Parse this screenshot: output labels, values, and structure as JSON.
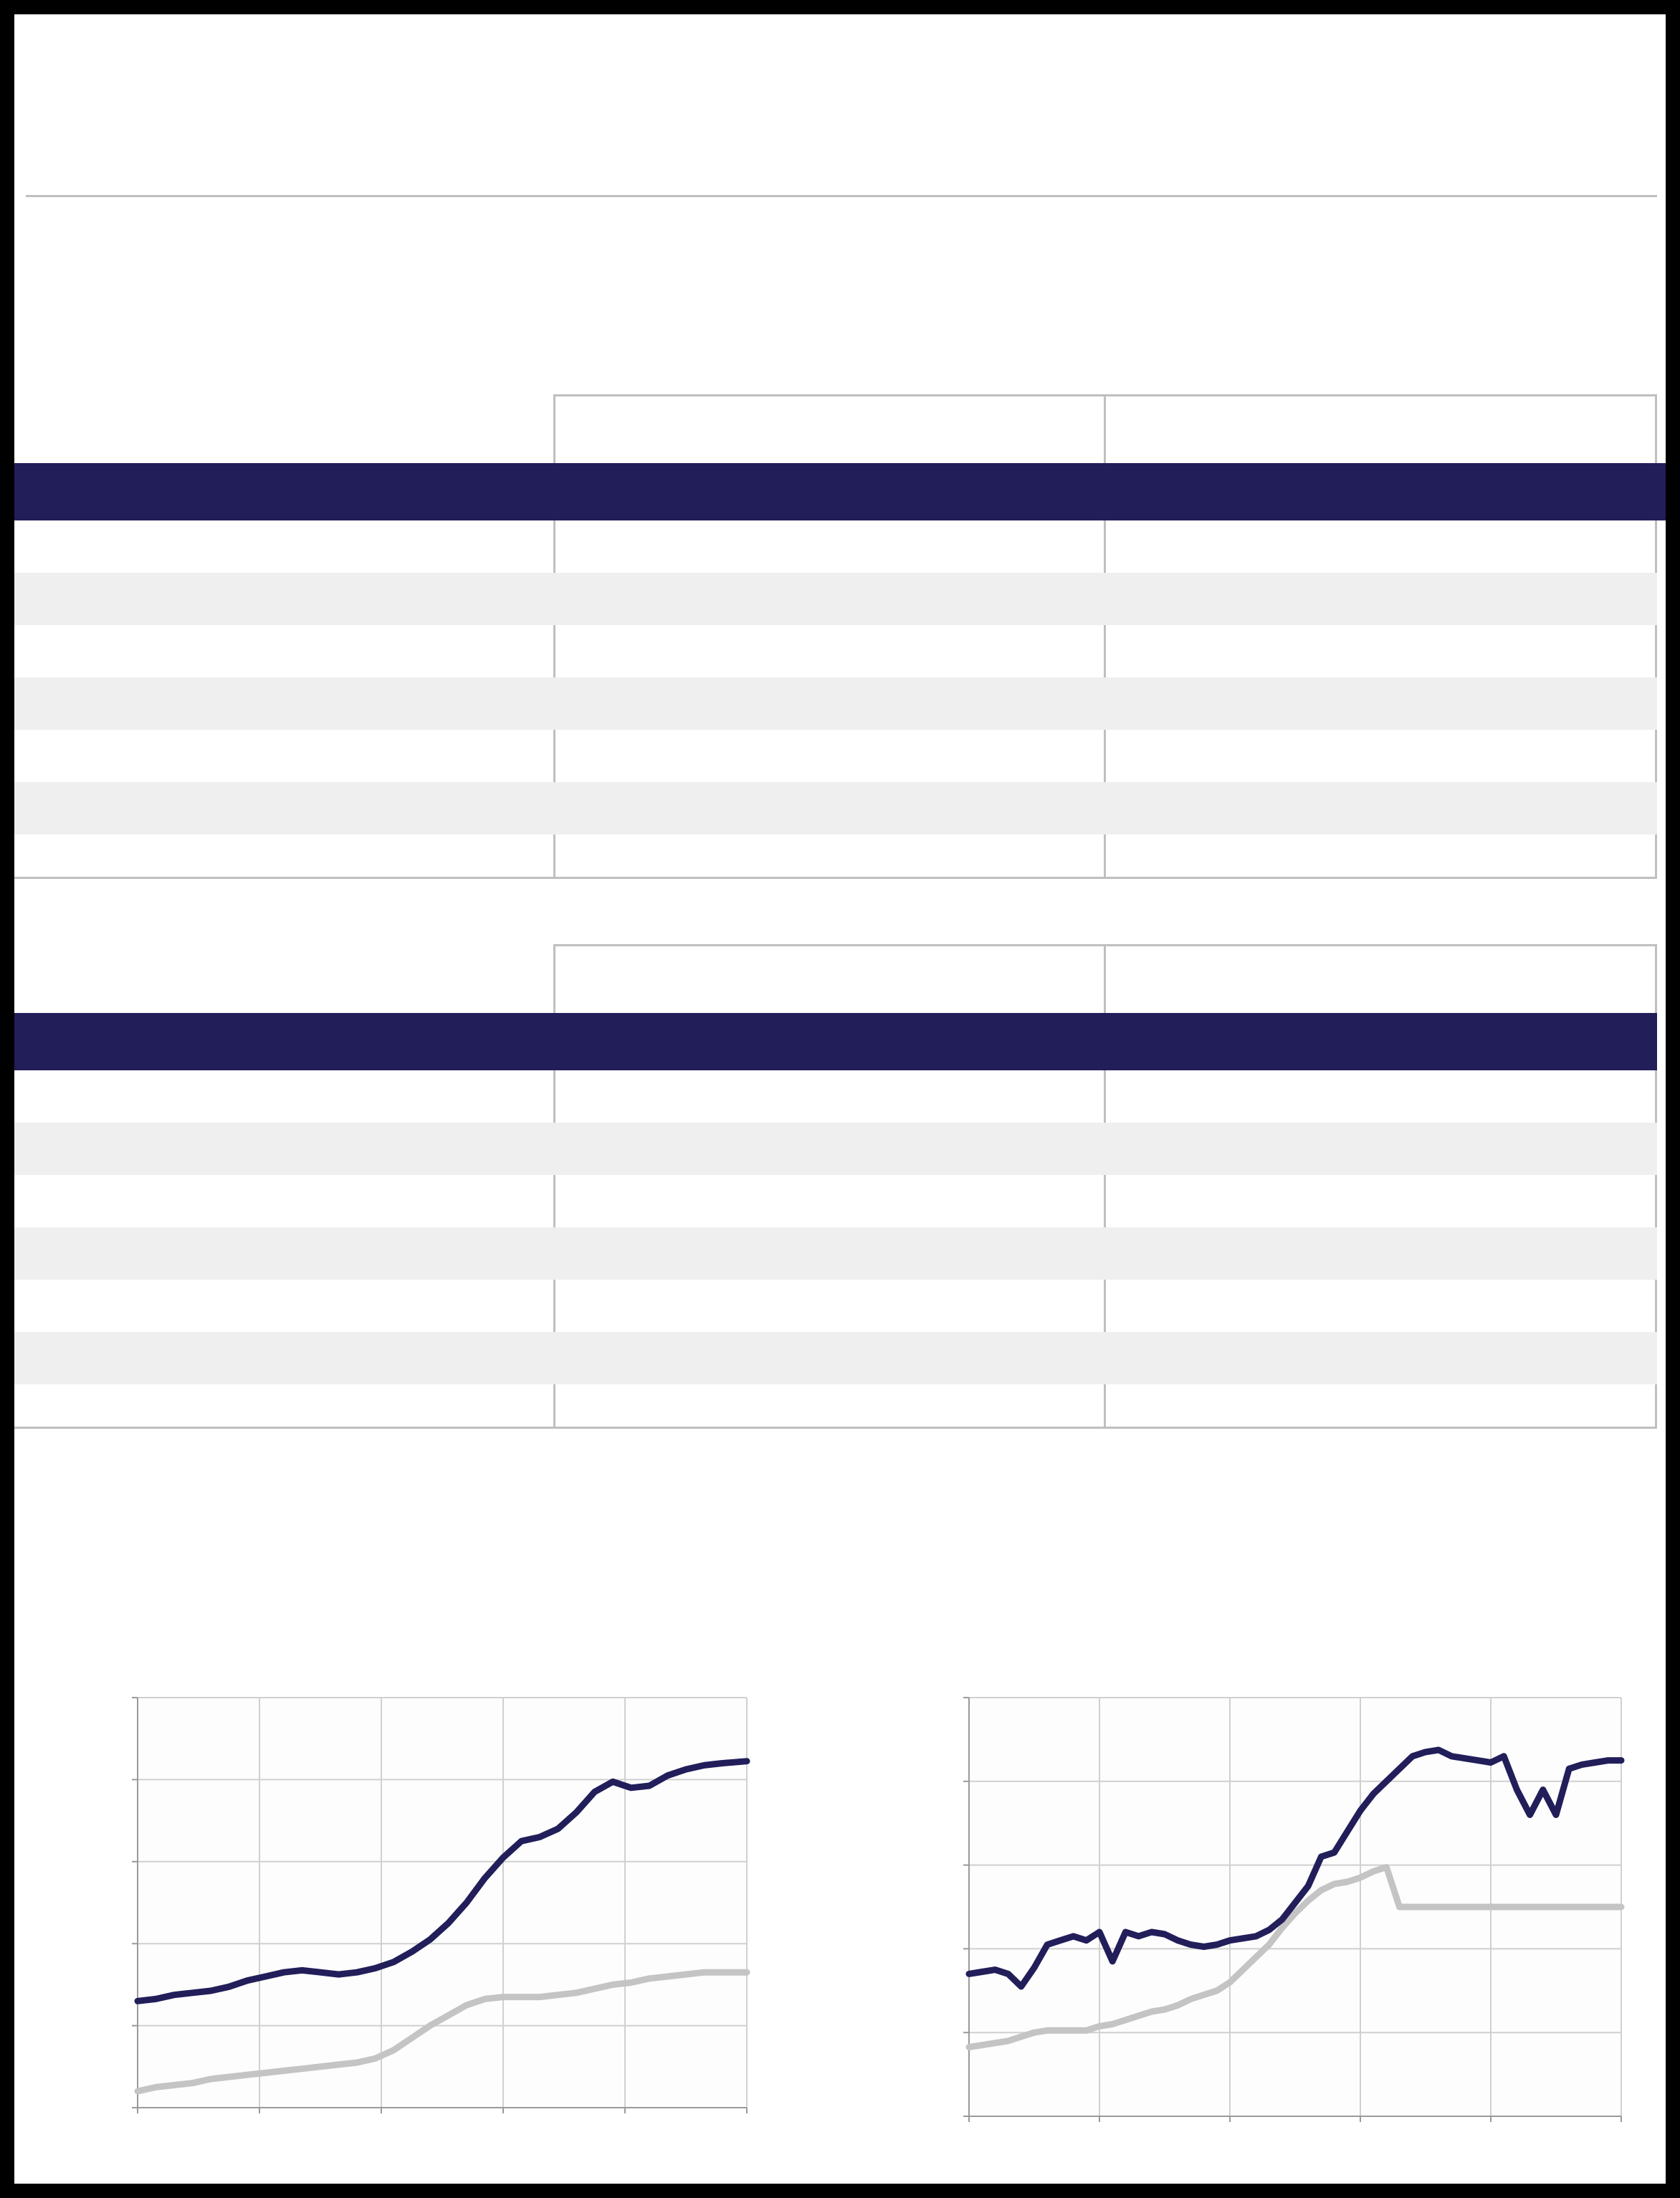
{
  "colors": {
    "frame": "#000000",
    "page": "#ffffff",
    "header_fill": "#221e5a",
    "row_shade": "#efefef",
    "rule": "#bfbfbf",
    "series_dark": "#221e5a",
    "series_light": "#c4c4c4",
    "grid": "#d0d0d0"
  },
  "tables": [
    {
      "columns": [
        "",
        "",
        ""
      ],
      "rows": [
        [
          "",
          "",
          ""
        ],
        [
          "",
          "",
          ""
        ],
        [
          "",
          "",
          ""
        ],
        [
          "",
          "",
          ""
        ],
        [
          "",
          "",
          ""
        ],
        [
          "",
          "",
          ""
        ],
        [
          "",
          "",
          ""
        ]
      ]
    },
    {
      "columns": [
        "",
        "",
        ""
      ],
      "rows": [
        [
          "",
          "",
          ""
        ],
        [
          "",
          "",
          ""
        ],
        [
          "",
          "",
          ""
        ],
        [
          "",
          "",
          ""
        ],
        [
          "",
          "",
          ""
        ],
        [
          "",
          "",
          ""
        ],
        [
          "",
          "",
          ""
        ]
      ]
    }
  ],
  "chart_data": [
    {
      "type": "line",
      "title": "",
      "xlabel": "",
      "ylabel": "",
      "grid": true,
      "x_ticks": 6,
      "y_ticks": 6,
      "xlim": [
        0,
        100
      ],
      "ylim": [
        0,
        100
      ],
      "x": [
        0,
        3,
        6,
        9,
        12,
        15,
        18,
        21,
        24,
        27,
        30,
        33,
        36,
        39,
        42,
        45,
        48,
        51,
        54,
        57,
        60,
        63,
        66,
        69,
        72,
        75,
        78,
        81,
        84,
        87,
        90,
        93,
        96,
        100
      ],
      "series": [
        {
          "color": "dark",
          "values": [
            26,
            26.5,
            27.5,
            28,
            28.5,
            29.5,
            31,
            32,
            33,
            33.5,
            33,
            32.5,
            33,
            34,
            35.5,
            38,
            41,
            45,
            50,
            56,
            61,
            65,
            66,
            68,
            72,
            77,
            79.5,
            78,
            78.5,
            81,
            82.5,
            83.5,
            84,
            84.5
          ]
        },
        {
          "color": "light",
          "values": [
            4,
            5,
            5.5,
            6,
            7,
            7.5,
            8,
            8.5,
            9,
            9.5,
            10,
            10.5,
            11,
            12,
            14,
            17,
            20,
            22.5,
            25,
            26.5,
            27,
            27,
            27,
            27.5,
            28,
            29,
            30,
            30.5,
            31.5,
            32,
            32.5,
            33,
            33,
            33
          ]
        }
      ]
    },
    {
      "type": "line",
      "title": "",
      "xlabel": "",
      "ylabel": "",
      "grid": true,
      "x_ticks": 6,
      "y_ticks": 6,
      "xlim": [
        0,
        100
      ],
      "ylim": [
        0,
        100
      ],
      "x": [
        0,
        2,
        4,
        6,
        8,
        10,
        12,
        14,
        16,
        18,
        20,
        22,
        24,
        26,
        28,
        30,
        32,
        34,
        36,
        38,
        40,
        42,
        44,
        46,
        48,
        50,
        52,
        54,
        56,
        58,
        60,
        62,
        64,
        66,
        68,
        70,
        72,
        74,
        76,
        78,
        80,
        82,
        84,
        86,
        88,
        90,
        92,
        94,
        96,
        98,
        100
      ],
      "series": [
        {
          "color": "dark",
          "values": [
            34,
            34.5,
            35,
            34,
            31,
            35.5,
            41,
            42,
            43,
            42,
            44,
            37,
            44,
            43,
            44,
            43.5,
            42,
            41,
            40.5,
            41,
            42,
            42.5,
            43,
            44.5,
            47,
            51,
            55,
            62,
            63,
            68,
            73,
            77,
            80,
            83,
            86,
            87,
            87.5,
            86,
            85.5,
            85,
            84.5,
            86,
            78,
            72,
            78,
            72,
            83,
            84,
            84.5,
            85,
            85
          ]
        },
        {
          "color": "light",
          "values": [
            16.5,
            17,
            17.5,
            18,
            19,
            20,
            20.5,
            20.5,
            20.5,
            20.5,
            21.5,
            22,
            23,
            24,
            25,
            25.5,
            26.5,
            28,
            29,
            30,
            32,
            35,
            38,
            41,
            45,
            48.5,
            51.5,
            54,
            55.5,
            56,
            57,
            58.5,
            59.5,
            50,
            50,
            50,
            50,
            50,
            50,
            50,
            50,
            50,
            50,
            50,
            50,
            50,
            50,
            50,
            50,
            50,
            50
          ]
        }
      ]
    }
  ]
}
